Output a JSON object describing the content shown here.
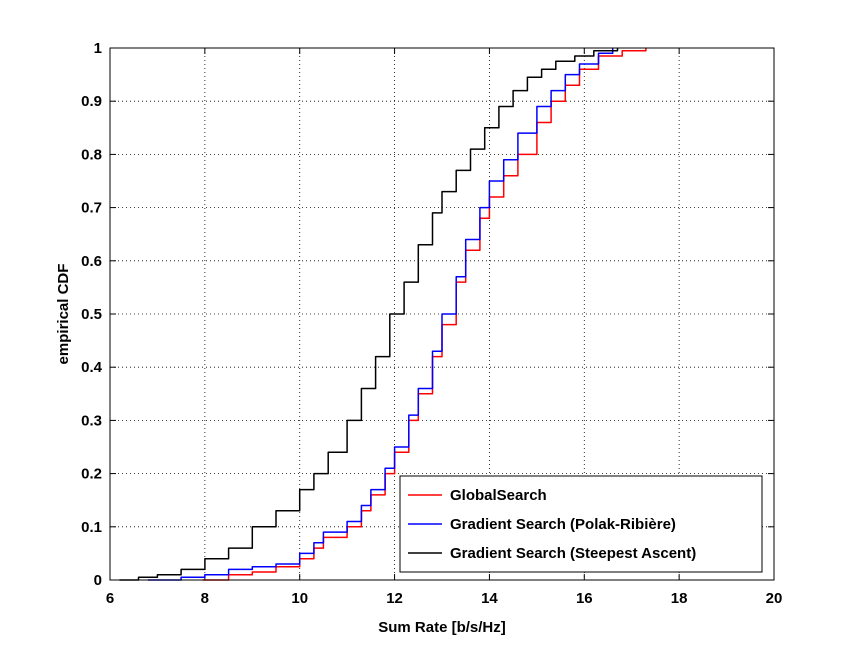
{
  "chart_data": {
    "type": "line",
    "xlabel": "Sum Rate [b/s/Hz]",
    "ylabel": "empirical CDF",
    "xlim": [
      6,
      20
    ],
    "ylim": [
      0,
      1
    ],
    "xticks": [
      6,
      8,
      10,
      12,
      14,
      16,
      18,
      20
    ],
    "yticks": [
      0,
      0.1,
      0.2,
      0.3,
      0.4,
      0.5,
      0.6,
      0.7,
      0.8,
      0.9,
      1
    ],
    "xtick_labels": [
      "6",
      "8",
      "10",
      "12",
      "14",
      "16",
      "18",
      "20"
    ],
    "ytick_labels": [
      "0",
      "0.1",
      "0.2",
      "0.3",
      "0.4",
      "0.5",
      "0.6",
      "0.7",
      "0.8",
      "0.9",
      "1"
    ],
    "grid": true,
    "legend_position": "bottom-right",
    "series": [
      {
        "name": "GlobalSearch",
        "color": "#ff0000",
        "x": [
          7.95,
          8.5,
          9.0,
          9.5,
          10.0,
          10.3,
          10.5,
          11.0,
          11.3,
          11.5,
          11.8,
          12.0,
          12.3,
          12.5,
          12.8,
          13.0,
          13.3,
          13.5,
          13.8,
          14.0,
          14.3,
          14.6,
          15.0,
          15.3,
          15.6,
          15.9,
          16.3,
          16.8,
          17.3
        ],
        "y": [
          0.0,
          0.01,
          0.015,
          0.025,
          0.04,
          0.06,
          0.08,
          0.1,
          0.13,
          0.16,
          0.2,
          0.24,
          0.3,
          0.35,
          0.42,
          0.48,
          0.56,
          0.62,
          0.68,
          0.72,
          0.76,
          0.8,
          0.86,
          0.9,
          0.93,
          0.96,
          0.985,
          0.995,
          1.0
        ]
      },
      {
        "name": "Gradient Search (Polak-Ribière)",
        "color": "#0000ff",
        "x": [
          6.8,
          7.5,
          8.0,
          8.5,
          9.0,
          9.5,
          10.0,
          10.3,
          10.5,
          11.0,
          11.3,
          11.5,
          11.8,
          12.0,
          12.3,
          12.5,
          12.8,
          13.0,
          13.3,
          13.5,
          13.8,
          14.0,
          14.3,
          14.6,
          15.0,
          15.3,
          15.6,
          15.9,
          16.3,
          16.6
        ],
        "y": [
          0.0,
          0.005,
          0.01,
          0.02,
          0.025,
          0.03,
          0.05,
          0.07,
          0.09,
          0.11,
          0.14,
          0.17,
          0.21,
          0.25,
          0.31,
          0.36,
          0.43,
          0.5,
          0.57,
          0.64,
          0.7,
          0.75,
          0.79,
          0.84,
          0.89,
          0.92,
          0.95,
          0.97,
          0.99,
          1.0
        ]
      },
      {
        "name": "Gradient Search (Steepest Ascent)",
        "color": "#000000",
        "x": [
          6.2,
          6.6,
          7.0,
          7.5,
          8.0,
          8.5,
          9.0,
          9.5,
          10.0,
          10.3,
          10.6,
          11.0,
          11.3,
          11.6,
          11.9,
          12.2,
          12.5,
          12.8,
          13.0,
          13.3,
          13.6,
          13.9,
          14.2,
          14.5,
          14.8,
          15.1,
          15.4,
          15.8,
          16.2,
          16.7
        ],
        "y": [
          0.0,
          0.005,
          0.01,
          0.02,
          0.04,
          0.06,
          0.1,
          0.13,
          0.17,
          0.2,
          0.24,
          0.3,
          0.36,
          0.42,
          0.5,
          0.56,
          0.63,
          0.69,
          0.73,
          0.77,
          0.81,
          0.85,
          0.89,
          0.92,
          0.945,
          0.96,
          0.975,
          0.985,
          0.995,
          1.0
        ]
      }
    ]
  }
}
